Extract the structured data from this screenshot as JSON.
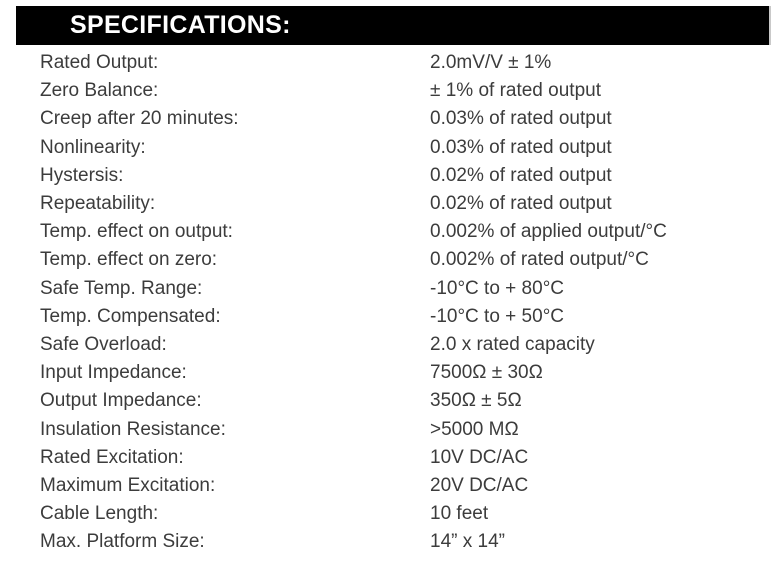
{
  "page": {
    "background_color": "#ffffff",
    "body_text_color": "#3c3c3c"
  },
  "specifications": {
    "title": "SPECIFICATIONS:",
    "header_bg_color": "#000000",
    "header_text_color": "#ffffff",
    "rows": [
      {
        "label": "Rated Output:",
        "value": "2.0mV/V ± 1%"
      },
      {
        "label": "Zero Balance:",
        "value": "± 1% of rated output"
      },
      {
        "label": "Creep after 20 minutes:",
        "value": "0.03% of rated output"
      },
      {
        "label": "Nonlinearity:",
        "value": "0.03% of rated output"
      },
      {
        "label": "Hystersis:",
        "value": "0.02% of rated output"
      },
      {
        "label": "Repeatability:",
        "value": "0.02% of rated output"
      },
      {
        "label": "Temp. effect on output:",
        "value": "0.002% of applied output/°C"
      },
      {
        "label": "Temp. effect on zero:",
        "value": "0.002% of rated output/°C"
      },
      {
        "label": "Safe Temp. Range:",
        "value": "-10°C to + 80°C"
      },
      {
        "label": "Temp. Compensated:",
        "value": "-10°C to + 50°C"
      },
      {
        "label": "Safe Overload:",
        "value": "2.0 x rated capacity"
      },
      {
        "label": "Input Impedance:",
        "value": "7500Ω ± 30Ω"
      },
      {
        "label": "Output Impedance:",
        "value": "350Ω ± 5Ω"
      },
      {
        "label": "Insulation Resistance:",
        "value": ">5000 MΩ"
      },
      {
        "label": "Rated Excitation:",
        "value": "10V DC/AC"
      },
      {
        "label": "Maximum Excitation:",
        "value": "20V DC/AC"
      },
      {
        "label": "Cable Length:",
        "value": "10 feet"
      },
      {
        "label": "Max. Platform Size:",
        "value": "14” x 14”"
      }
    ]
  }
}
